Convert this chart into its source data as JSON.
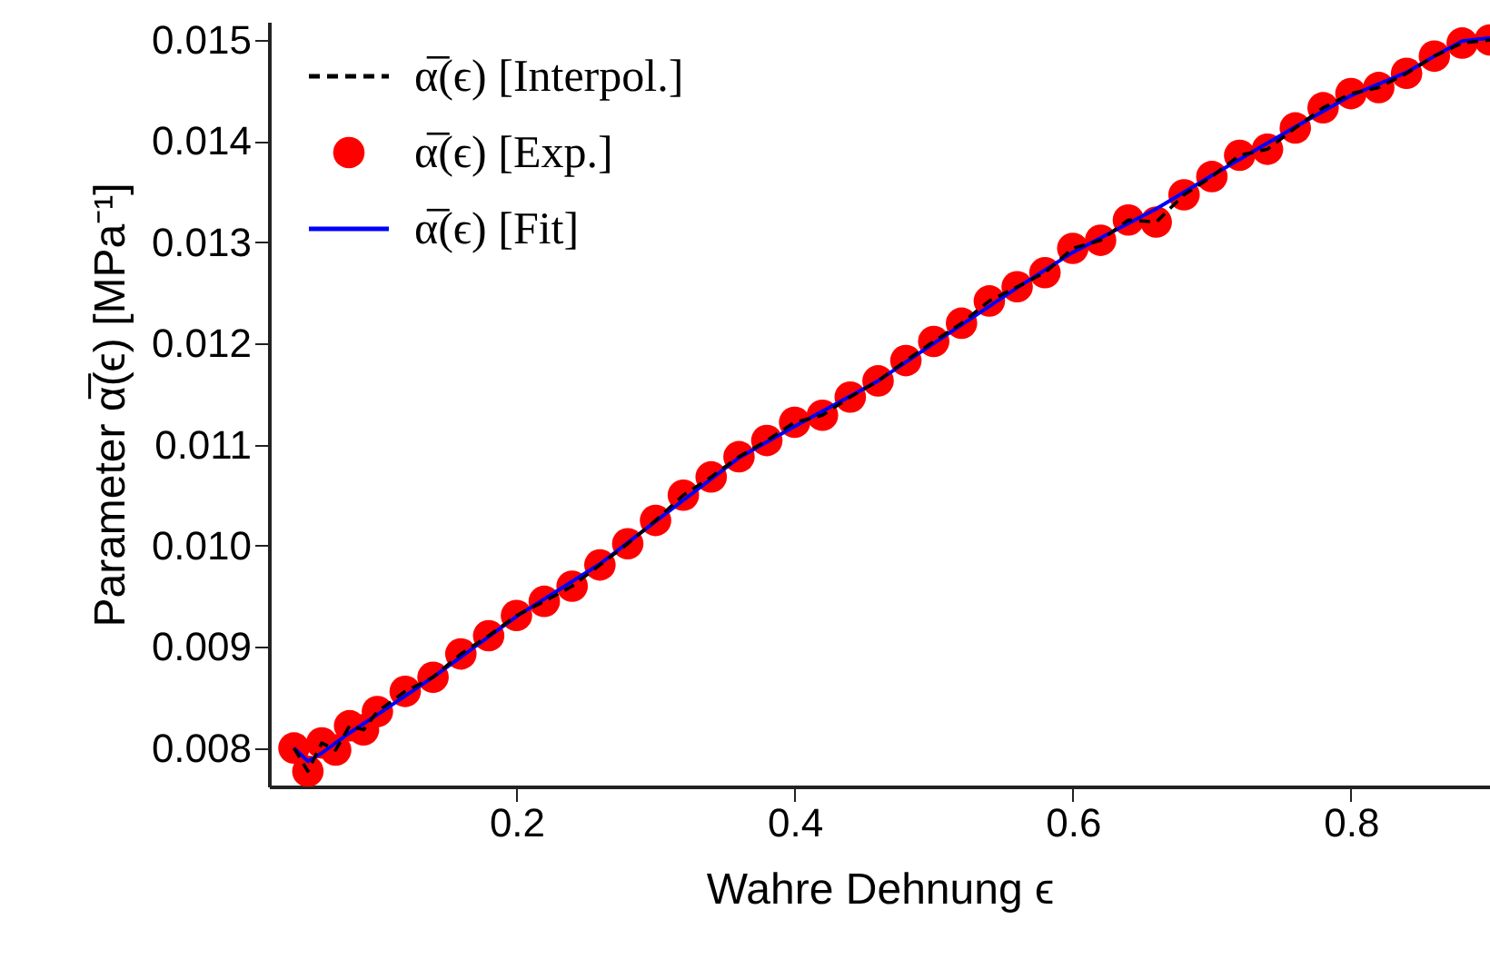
{
  "chart_data": {
    "type": "line",
    "xlabel": "Wahre Dehnung ϵ",
    "ylabel": "Parameter α̅(ϵ) [MPa⁻¹]",
    "xlim": [
      0.022,
      0.9
    ],
    "ylim": [
      0.00762,
      0.01518
    ],
    "xticks": [
      0.2,
      0.4,
      0.6,
      0.8
    ],
    "yticks": [
      0.008,
      0.009,
      {
        "value": 0.01,
        "label": "0.010"
      },
      0.011,
      0.012,
      0.013,
      0.014,
      0.015
    ],
    "grid": false,
    "legend": "top left",
    "series": [
      {
        "name": "α̅(ϵ) [Interpol.]",
        "type": "line",
        "line_style": "dashed",
        "marker": "none",
        "color": "#000000",
        "x": [
          0.04,
          0.05,
          0.06,
          0.07,
          0.08,
          0.09,
          0.1,
          0.12,
          0.14,
          0.16,
          0.18,
          0.2,
          0.22,
          0.24,
          0.26,
          0.28,
          0.3,
          0.32,
          0.34,
          0.36,
          0.38,
          0.4,
          0.42,
          0.44,
          0.46,
          0.48,
          0.5,
          0.52,
          0.54,
          0.56,
          0.58,
          0.6,
          0.62,
          0.64,
          0.66,
          0.68,
          0.7,
          0.72,
          0.74,
          0.76,
          0.78,
          0.8,
          0.82,
          0.84,
          0.86,
          0.88,
          0.9
        ],
        "values": [
          0.008,
          0.00777,
          0.00805,
          0.00798,
          0.00822,
          0.00818,
          0.00836,
          0.00856,
          0.0087,
          0.00893,
          0.00911,
          0.00931,
          0.00945,
          0.0096,
          0.00981,
          0.01002,
          0.01025,
          0.0105,
          0.01068,
          0.01088,
          0.01104,
          0.01122,
          0.01129,
          0.01147,
          0.01163,
          0.01183,
          0.01202,
          0.0122,
          0.01242,
          0.01256,
          0.0127,
          0.01294,
          0.01302,
          0.01322,
          0.0132,
          0.01347,
          0.01365,
          0.01386,
          0.01392,
          0.01413,
          0.01433,
          0.01447,
          0.01453,
          0.01467,
          0.01484,
          0.01497,
          0.015
        ]
      },
      {
        "name": "α̅(ϵ) [Exp.]",
        "type": "scatter",
        "marker": "circle",
        "color": "#ff0000",
        "x": [
          0.04,
          0.05,
          0.06,
          0.07,
          0.08,
          0.09,
          0.1,
          0.12,
          0.14,
          0.16,
          0.18,
          0.2,
          0.22,
          0.24,
          0.26,
          0.28,
          0.3,
          0.32,
          0.34,
          0.36,
          0.38,
          0.4,
          0.42,
          0.44,
          0.46,
          0.48,
          0.5,
          0.52,
          0.54,
          0.56,
          0.58,
          0.6,
          0.62,
          0.64,
          0.66,
          0.68,
          0.7,
          0.72,
          0.74,
          0.76,
          0.78,
          0.8,
          0.82,
          0.84,
          0.86,
          0.88,
          0.9
        ],
        "values": [
          0.008,
          0.00777,
          0.00805,
          0.00798,
          0.00822,
          0.00818,
          0.00836,
          0.00856,
          0.0087,
          0.00893,
          0.00911,
          0.00931,
          0.00945,
          0.0096,
          0.00981,
          0.01002,
          0.01025,
          0.0105,
          0.01068,
          0.01088,
          0.01104,
          0.01122,
          0.01129,
          0.01147,
          0.01163,
          0.01183,
          0.01202,
          0.0122,
          0.01242,
          0.01256,
          0.0127,
          0.01294,
          0.01302,
          0.01322,
          0.0132,
          0.01347,
          0.01365,
          0.01386,
          0.01392,
          0.01413,
          0.01433,
          0.01447,
          0.01453,
          0.01467,
          0.01484,
          0.01497,
          0.015
        ]
      },
      {
        "name": "α̅(ϵ) [Fit]",
        "type": "line",
        "line_style": "solid",
        "marker": "none",
        "color": "#0000ff",
        "x": [
          0.04,
          0.05,
          0.06,
          0.08,
          0.1,
          0.14,
          0.2,
          0.26,
          0.3,
          0.36,
          0.4,
          0.46,
          0.5,
          0.56,
          0.6,
          0.66,
          0.7,
          0.76,
          0.8,
          0.84,
          0.86,
          0.88,
          0.9
        ],
        "values": [
          0.008,
          0.00787,
          0.00795,
          0.00815,
          0.00833,
          0.0087,
          0.0093,
          0.00982,
          0.01024,
          0.01087,
          0.01118,
          0.01163,
          0.012,
          0.01255,
          0.0129,
          0.01333,
          0.01366,
          0.01414,
          0.01445,
          0.01468,
          0.01484,
          0.01499,
          0.01502
        ]
      }
    ]
  }
}
